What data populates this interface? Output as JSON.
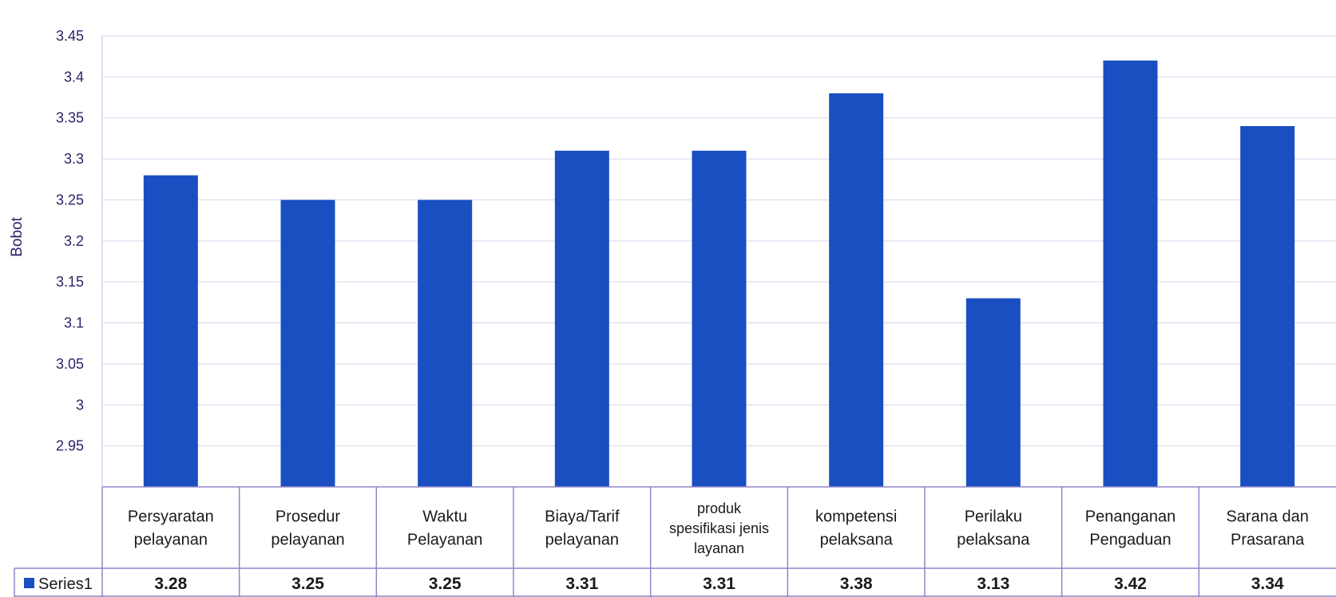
{
  "chart_data": {
    "type": "bar",
    "ylabel": "Bobot",
    "yticks": [
      "2.95",
      "3",
      "3.05",
      "3.1",
      "3.15",
      "3.2",
      "3.25",
      "3.3",
      "3.35",
      "3.4",
      "3.45"
    ],
    "ylim": [
      2.9,
      3.45
    ],
    "grid": true,
    "categories": [
      "Persyaratan pelayanan",
      "Prosedur pelayanan",
      "Waktu Pelayanan",
      "Biaya/Tarif pelayanan",
      "produk spesifikasi jenis layanan",
      "kompetensi pelaksana",
      "Perilaku pelaksana",
      "Penanganan Pengaduan",
      "Sarana dan Prasarana"
    ],
    "category_lines": [
      [
        "Persyaratan",
        "pelayanan"
      ],
      [
        "Prosedur",
        "pelayanan"
      ],
      [
        "Waktu",
        "Pelayanan"
      ],
      [
        "Biaya/Tarif",
        "pelayanan"
      ],
      [
        "produk",
        "spesifikasi jenis",
        "layanan"
      ],
      [
        "kompetensi",
        "pelaksana"
      ],
      [
        "Perilaku",
        "pelaksana"
      ],
      [
        "Penanganan",
        "Pengaduan"
      ],
      [
        "Sarana dan",
        "Prasarana"
      ]
    ],
    "series": [
      {
        "name": "Series1",
        "values": [
          3.28,
          3.25,
          3.25,
          3.31,
          3.31,
          3.38,
          3.13,
          3.42,
          3.34
        ],
        "labels": [
          "3.28",
          "3.25",
          "3.25",
          "3.31",
          "3.31",
          "3.38",
          "3.13",
          "3.42",
          "3.34"
        ]
      }
    ],
    "legend": "data-table-left",
    "colors": {
      "bar": "#1a4fc2",
      "grid": "#d9d4ec",
      "axis_text": "#2a2566",
      "table_border": "#8f86c8"
    }
  }
}
